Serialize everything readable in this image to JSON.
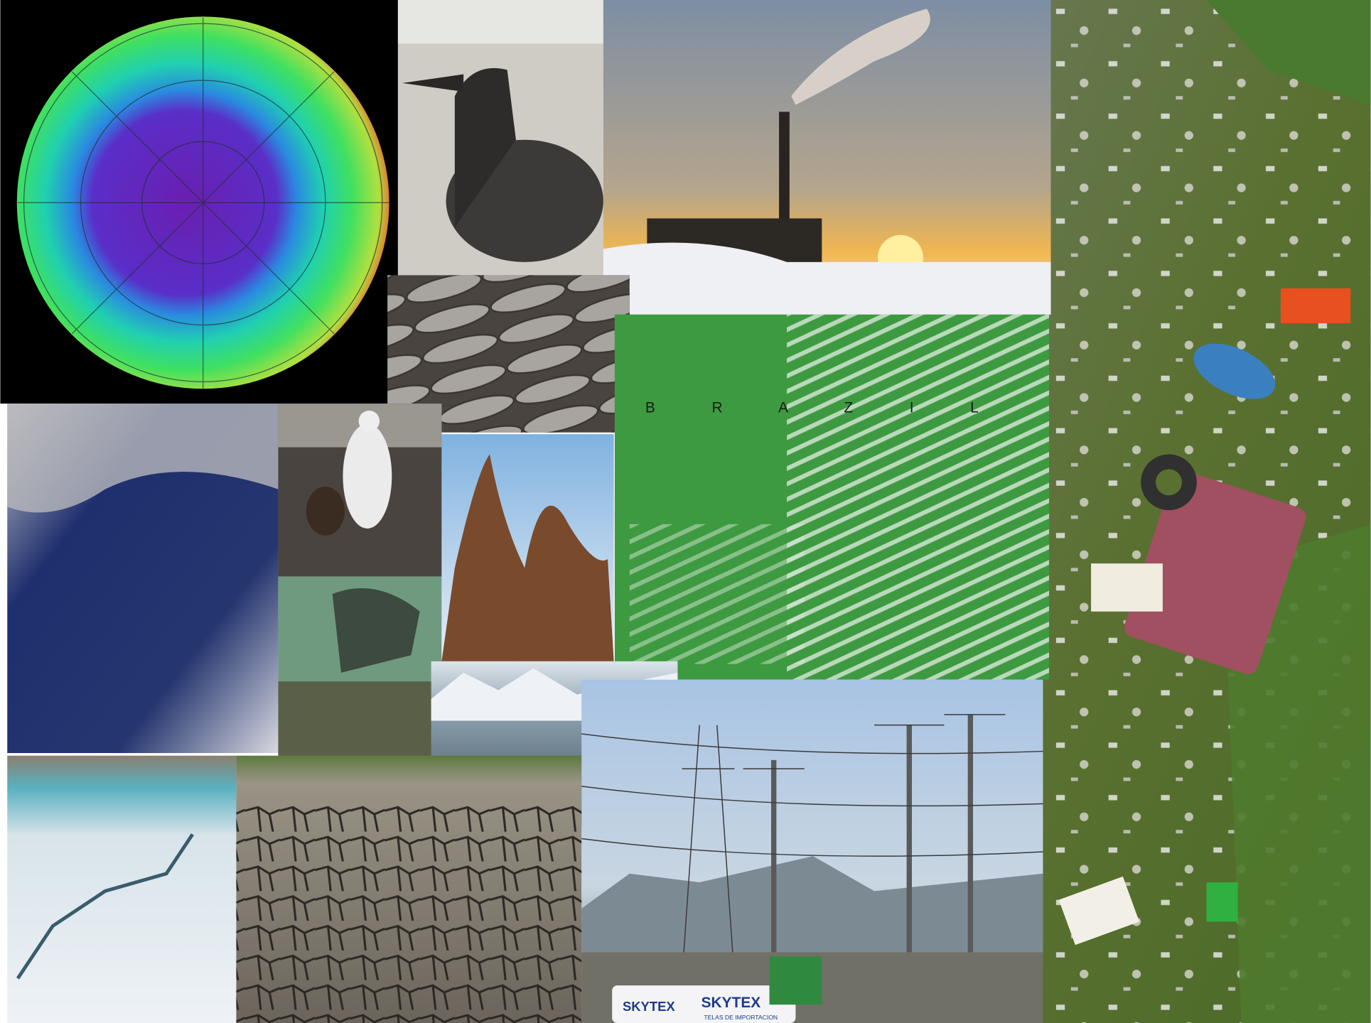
{
  "collage": {
    "map_label": "B R A Z I L",
    "van_signs": [
      "SKYTEX",
      "SKYTEX"
    ],
    "van_subtitle": "TELAS DE IMPORTACION"
  }
}
